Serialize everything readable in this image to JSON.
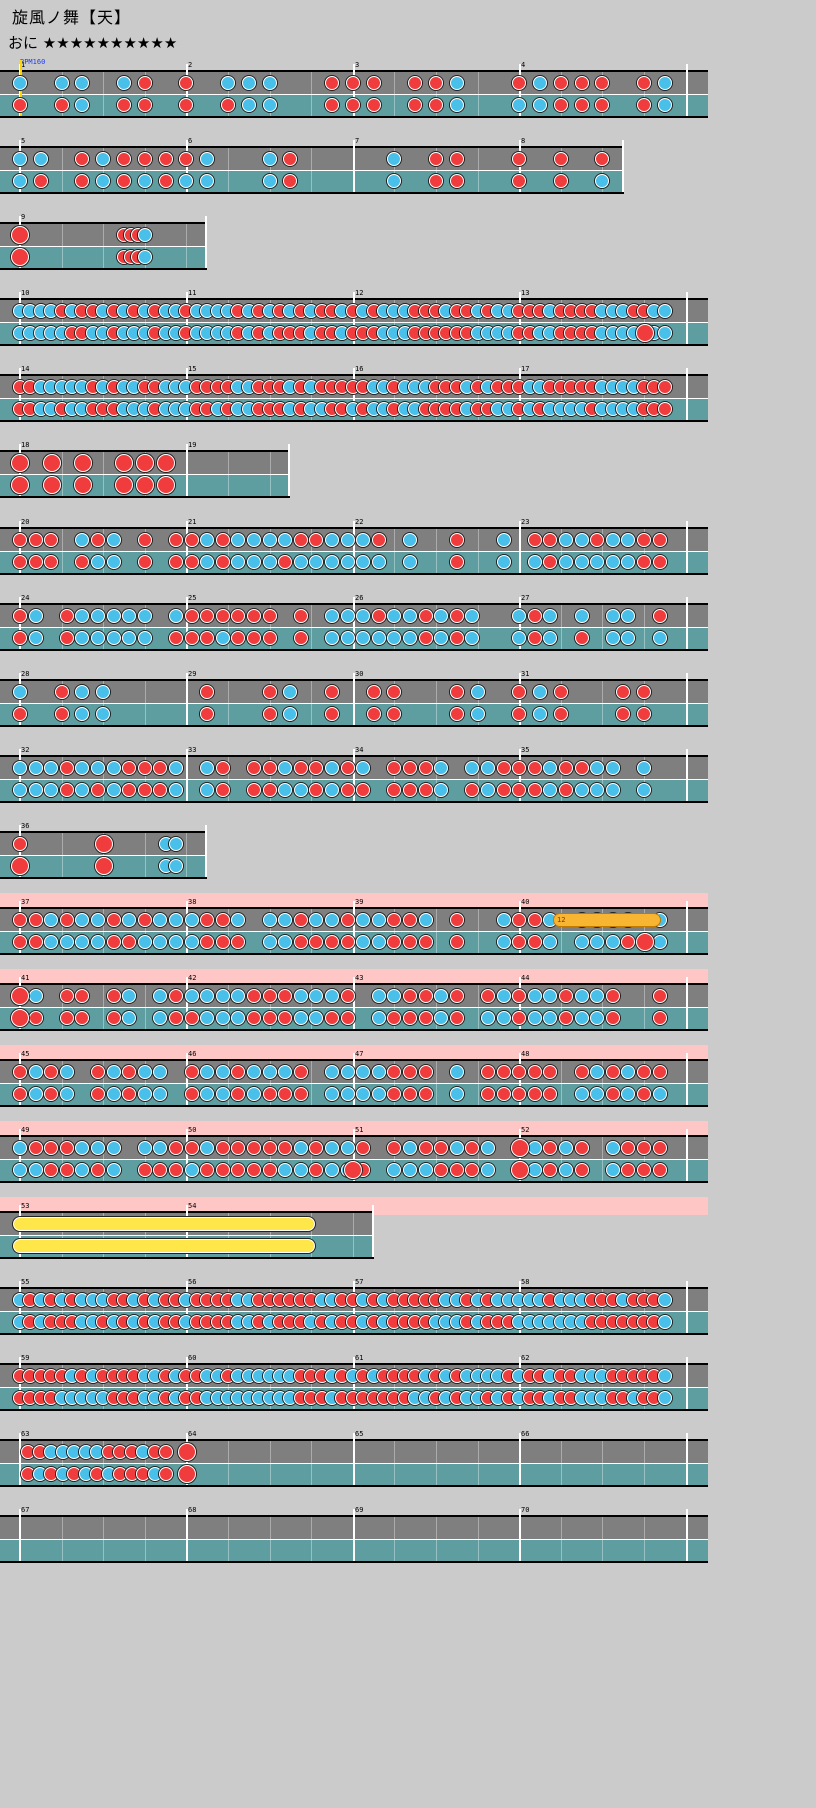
{
  "song": {
    "title": "旋風ノ舞【天】",
    "difficulty": "おに",
    "stars": "★★★★★★★★★★"
  },
  "bpm_label": "BPM160",
  "colors": {
    "don": "#f03c3c",
    "ka": "#49c0ea",
    "roll": "#ffe74a",
    "balloon": "#f7b531",
    "gogo": "#ffc6c6"
  },
  "rows": [
    {
      "measures": [
        1,
        2,
        3,
        4
      ]
    },
    {
      "measures": [
        5,
        6,
        7,
        8
      ]
    },
    {
      "measures": [
        9
      ]
    },
    {
      "measures": [
        10,
        11,
        12,
        13
      ]
    },
    {
      "measures": [
        14,
        15,
        16,
        17
      ]
    },
    {
      "measures": [
        18,
        19
      ]
    },
    {
      "measures": [
        20,
        21,
        22,
        23
      ]
    },
    {
      "measures": [
        24,
        25,
        26,
        27
      ]
    },
    {
      "measures": [
        28,
        29,
        30,
        31
      ]
    },
    {
      "measures": [
        32,
        33,
        34,
        35
      ]
    },
    {
      "measures": [
        36
      ]
    },
    {
      "measures": [
        37,
        38,
        39,
        40
      ],
      "gogo": true,
      "balloon_hits": "12"
    },
    {
      "measures": [
        41,
        42,
        43,
        44
      ],
      "gogo": true
    },
    {
      "measures": [
        45,
        46,
        47,
        48
      ],
      "gogo": true
    },
    {
      "measures": [
        49,
        50,
        51,
        52
      ],
      "gogo": true
    },
    {
      "measures": [
        53,
        54
      ],
      "gogo": true
    },
    {
      "measures": [
        55,
        56,
        57,
        58
      ]
    },
    {
      "measures": [
        59,
        60,
        61,
        62
      ]
    },
    {
      "measures": [
        63,
        64,
        65,
        66
      ]
    },
    {
      "measures": [
        67,
        68,
        69,
        70
      ]
    }
  ]
}
